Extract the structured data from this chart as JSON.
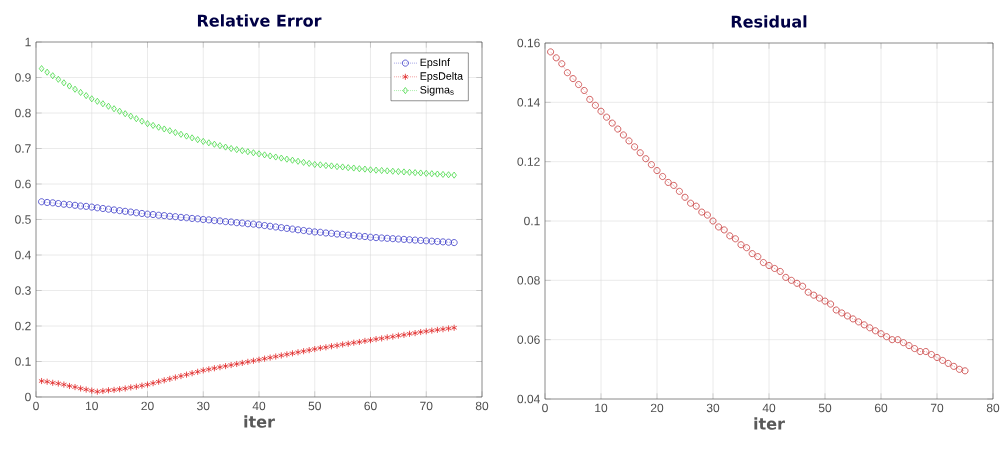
{
  "chart_data": [
    {
      "type": "line",
      "title": "Relative Error",
      "xlabel": "iter",
      "xlim": [
        0,
        80
      ],
      "ylim": [
        0,
        1
      ],
      "xticks": [
        0,
        10,
        20,
        30,
        40,
        50,
        60,
        70,
        80
      ],
      "yticks": [
        0,
        0.1,
        0.2,
        0.3,
        0.4,
        0.5,
        0.6,
        0.7,
        0.8,
        0.9,
        1
      ],
      "grid": true,
      "legend": "top right",
      "x": [
        1,
        2,
        3,
        4,
        5,
        6,
        7,
        8,
        9,
        10,
        11,
        12,
        13,
        14,
        15,
        16,
        17,
        18,
        19,
        20,
        21,
        22,
        23,
        24,
        25,
        26,
        27,
        28,
        29,
        30,
        31,
        32,
        33,
        34,
        35,
        36,
        37,
        38,
        39,
        40,
        41,
        42,
        43,
        44,
        45,
        46,
        47,
        48,
        49,
        50,
        51,
        52,
        53,
        54,
        55,
        56,
        57,
        58,
        59,
        60,
        61,
        62,
        63,
        64,
        65,
        66,
        67,
        68,
        69,
        70,
        71,
        72,
        73,
        74,
        75
      ],
      "series": [
        {
          "name": "EpsInf",
          "color": "#3a3ac8",
          "marker": "circle",
          "line_style": "dotted",
          "values": [
            0.55,
            0.548,
            0.547,
            0.545,
            0.543,
            0.542,
            0.54,
            0.538,
            0.537,
            0.535,
            0.533,
            0.531,
            0.529,
            0.527,
            0.525,
            0.523,
            0.521,
            0.519,
            0.517,
            0.515,
            0.514,
            0.512,
            0.511,
            0.509,
            0.508,
            0.506,
            0.505,
            0.503,
            0.502,
            0.5,
            0.499,
            0.497,
            0.496,
            0.494,
            0.493,
            0.491,
            0.49,
            0.488,
            0.487,
            0.485,
            0.483,
            0.481,
            0.479,
            0.477,
            0.475,
            0.473,
            0.471,
            0.469,
            0.467,
            0.465,
            0.464,
            0.462,
            0.461,
            0.459,
            0.458,
            0.456,
            0.455,
            0.453,
            0.452,
            0.45,
            0.449,
            0.448,
            0.447,
            0.446,
            0.445,
            0.444,
            0.443,
            0.442,
            0.441,
            0.44,
            0.439,
            0.438,
            0.437,
            0.436,
            0.435
          ]
        },
        {
          "name": "EpsDelta",
          "color": "#e02424",
          "marker": "cross",
          "line_style": "dotted",
          "values": [
            0.045,
            0.043,
            0.04,
            0.038,
            0.035,
            0.031,
            0.028,
            0.024,
            0.021,
            0.018,
            0.015,
            0.017,
            0.019,
            0.02,
            0.022,
            0.024,
            0.027,
            0.029,
            0.032,
            0.035,
            0.039,
            0.043,
            0.047,
            0.051,
            0.055,
            0.059,
            0.063,
            0.067,
            0.071,
            0.075,
            0.078,
            0.081,
            0.084,
            0.087,
            0.09,
            0.093,
            0.096,
            0.099,
            0.102,
            0.105,
            0.108,
            0.111,
            0.114,
            0.117,
            0.12,
            0.123,
            0.126,
            0.129,
            0.132,
            0.135,
            0.138,
            0.14,
            0.143,
            0.145,
            0.148,
            0.15,
            0.153,
            0.155,
            0.158,
            0.16,
            0.163,
            0.165,
            0.168,
            0.17,
            0.173,
            0.175,
            0.178,
            0.18,
            0.183,
            0.185,
            0.187,
            0.189,
            0.191,
            0.193,
            0.195
          ]
        },
        {
          "name": "Sigma$_{s}$",
          "color": "#44d844",
          "marker": "diamond",
          "line_style": "dotted",
          "values": [
            0.925,
            0.915,
            0.905,
            0.895,
            0.885,
            0.876,
            0.867,
            0.858,
            0.849,
            0.84,
            0.833,
            0.826,
            0.819,
            0.812,
            0.805,
            0.798,
            0.791,
            0.784,
            0.777,
            0.77,
            0.765,
            0.76,
            0.755,
            0.75,
            0.745,
            0.74,
            0.735,
            0.73,
            0.725,
            0.72,
            0.716,
            0.712,
            0.708,
            0.704,
            0.7,
            0.697,
            0.694,
            0.691,
            0.688,
            0.685,
            0.682,
            0.679,
            0.676,
            0.673,
            0.67,
            0.667,
            0.664,
            0.661,
            0.658,
            0.655,
            0.654,
            0.652,
            0.651,
            0.649,
            0.648,
            0.646,
            0.645,
            0.643,
            0.642,
            0.64,
            0.639,
            0.638,
            0.637,
            0.636,
            0.635,
            0.634,
            0.633,
            0.632,
            0.631,
            0.63,
            0.629,
            0.628,
            0.627,
            0.626,
            0.625
          ]
        }
      ]
    },
    {
      "type": "line",
      "title": "Residual",
      "xlabel": "iter",
      "xlim": [
        0,
        80
      ],
      "ylim": [
        0.04,
        0.16
      ],
      "xticks": [
        0,
        10,
        20,
        30,
        40,
        50,
        60,
        70,
        80
      ],
      "yticks": [
        0.04,
        0.06,
        0.08,
        0.1,
        0.12,
        0.14,
        0.16
      ],
      "grid": true,
      "x": [
        1,
        2,
        3,
        4,
        5,
        6,
        7,
        8,
        9,
        10,
        11,
        12,
        13,
        14,
        15,
        16,
        17,
        18,
        19,
        20,
        21,
        22,
        23,
        24,
        25,
        26,
        27,
        28,
        29,
        30,
        31,
        32,
        33,
        34,
        35,
        36,
        37,
        38,
        39,
        40,
        41,
        42,
        43,
        44,
        45,
        46,
        47,
        48,
        49,
        50,
        51,
        52,
        53,
        54,
        55,
        56,
        57,
        58,
        59,
        60,
        61,
        62,
        63,
        64,
        65,
        66,
        67,
        68,
        69,
        70,
        71,
        72,
        73,
        74,
        75
      ],
      "series": [
        {
          "color": "#c83c3c",
          "marker": "circle",
          "line_style": "dotted",
          "values": [
            0.157,
            0.155,
            0.153,
            0.15,
            0.148,
            0.146,
            0.144,
            0.141,
            0.139,
            0.137,
            0.135,
            0.133,
            0.131,
            0.129,
            0.127,
            0.125,
            0.123,
            0.121,
            0.119,
            0.117,
            0.115,
            0.113,
            0.112,
            0.11,
            0.108,
            0.106,
            0.105,
            0.103,
            0.102,
            0.1,
            0.098,
            0.097,
            0.095,
            0.094,
            0.092,
            0.091,
            0.089,
            0.088,
            0.086,
            0.085,
            0.084,
            0.083,
            0.081,
            0.08,
            0.079,
            0.078,
            0.076,
            0.075,
            0.074,
            0.073,
            0.072,
            0.07,
            0.069,
            0.068,
            0.067,
            0.066,
            0.065,
            0.064,
            0.063,
            0.062,
            0.061,
            0.06,
            0.06,
            0.059,
            0.058,
            0.057,
            0.056,
            0.056,
            0.055,
            0.054,
            0.053,
            0.052,
            0.051,
            0.05,
            0.0495
          ]
        }
      ]
    }
  ]
}
